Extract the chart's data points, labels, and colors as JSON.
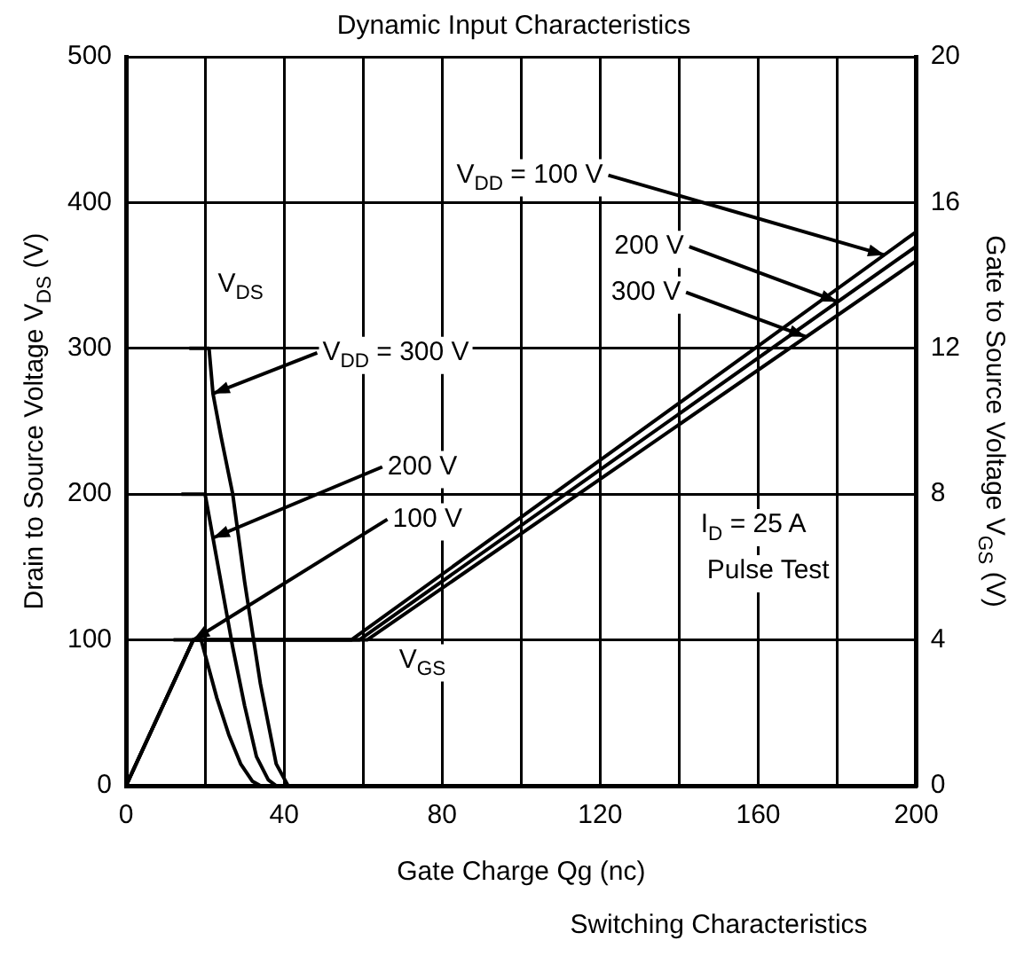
{
  "chart_data": {
    "type": "line",
    "title": "Dynamic Input Characteristics",
    "xlabel": "Gate Charge Qg (nc)",
    "ylabel": "Drain to Source Voltage V$_{DS}$ (V)",
    "y2label": "Gate to Source Voltage V$_{GS}$ (V)",
    "xlim": [
      0,
      200
    ],
    "xticks": [
      0,
      {
        "value": 20,
        "label": null
      },
      40,
      {
        "value": 60,
        "label": null
      },
      80,
      {
        "value": 100,
        "label": null
      },
      120,
      {
        "value": 140,
        "label": null
      },
      160,
      {
        "value": 180,
        "label": null
      },
      200
    ],
    "ylim": [
      0,
      500
    ],
    "yticks": [
      0,
      100,
      200,
      300,
      400,
      500
    ],
    "y2lim": [
      0,
      20
    ],
    "y2ticks": [
      0,
      4,
      8,
      12,
      16,
      20
    ],
    "grid": true,
    "series": [
      {
        "color": "#000000",
        "x": [
          16,
          21,
          22,
          24,
          27,
          30,
          34,
          38,
          41
        ],
        "values": [
          300,
          300,
          269,
          240,
          200,
          140,
          70,
          15,
          0
        ]
      },
      {
        "color": "#000000",
        "x": [
          14,
          20,
          22,
          24,
          27,
          30,
          33,
          36,
          38
        ],
        "values": [
          200,
          200,
          170,
          140,
          95,
          55,
          20,
          4,
          0
        ]
      },
      {
        "color": "#000000",
        "x": [
          12,
          19,
          21,
          23,
          26,
          29,
          32,
          34
        ],
        "values": [
          100,
          100,
          80,
          60,
          35,
          15,
          3,
          0
        ]
      },
      {
        "color": "#000000",
        "axis": "y2",
        "x": [
          0,
          17,
          57,
          200
        ],
        "values": [
          0,
          4,
          4,
          15.2
        ]
      },
      {
        "color": "#000000",
        "axis": "y2",
        "x": [
          0,
          17,
          59,
          200
        ],
        "values": [
          0,
          4,
          4,
          14.8
        ]
      },
      {
        "color": "#000000",
        "axis": "y2",
        "x": [
          0,
          17,
          61,
          200
        ],
        "values": [
          0,
          4,
          4,
          14.4
        ]
      }
    ],
    "annotations": [
      {
        "text": "V$_{DS}$",
        "x": 29,
        "y": 344
      },
      {
        "text": "V$_{DD}$ = 300 V",
        "x": 22,
        "y": 269
      },
      {
        "text": "200 V",
        "x": 22,
        "y": 170
      },
      {
        "text": "100 V",
        "x": 17,
        "y": 100
      },
      {
        "text": "V$_{DD}$ = 100 V",
        "x": 192,
        "y": 364
      },
      {
        "text": "200 V",
        "x": 180,
        "y": 332
      },
      {
        "text": "300 V",
        "x": 172,
        "y": 308
      },
      {
        "text": "V$_{GS}$",
        "x": 75,
        "y": 86
      },
      "I$_{D}$ = 25 A",
      "Pulse Test",
      "Switching Characteristics"
    ]
  }
}
